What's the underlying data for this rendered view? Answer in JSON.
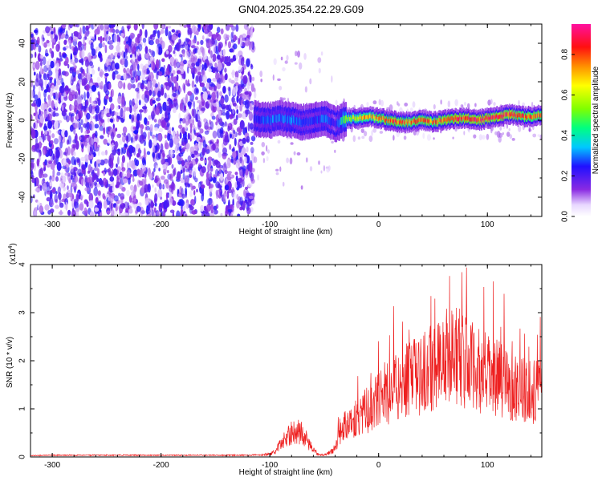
{
  "title": "GN04.2025.354.22.29.G09",
  "chart_data": [
    {
      "type": "heatmap",
      "xlabel": "Height of straight line (km)",
      "ylabel": "Frequency (Hz)",
      "xlim": [
        -320,
        150
      ],
      "ylim": [
        -50,
        50
      ],
      "x_ticks": [
        -300,
        -200,
        -100,
        0,
        100
      ],
      "y_ticks": [
        -40,
        -20,
        0,
        20,
        40
      ],
      "colorbar": {
        "label": "Normalized spectral amplitude",
        "range": [
          0.0,
          0.95
        ],
        "ticks": [
          0.0,
          0.2,
          0.4,
          0.6,
          0.8
        ],
        "tick_labels": [
          "0.0",
          "0.2",
          "0.4",
          "0.6",
          "0.8"
        ]
      },
      "noise_region_x": [
        -320,
        -115
      ],
      "signal_ridge": {
        "x": [
          -115,
          -100,
          -90,
          -80,
          -70,
          -60,
          -50,
          -40,
          -30,
          -20,
          -10,
          0,
          10,
          20,
          30,
          40,
          50,
          60,
          70,
          80,
          90,
          100,
          110,
          120,
          130,
          140,
          150
        ],
        "frequency": [
          1,
          0,
          1,
          0,
          -1,
          0,
          1,
          -2,
          1,
          1,
          2,
          1,
          0,
          -1,
          -1,
          0,
          -1,
          0,
          1,
          1,
          0,
          1,
          2,
          3,
          2,
          2,
          3
        ],
        "amplitude": [
          0.25,
          0.3,
          0.3,
          0.3,
          0.25,
          0.25,
          0.3,
          0.2,
          0.55,
          0.65,
          0.7,
          0.75,
          0.8,
          0.8,
          0.75,
          0.8,
          0.75,
          0.8,
          0.85,
          0.85,
          0.85,
          0.85,
          0.85,
          0.85,
          0.8,
          0.8,
          0.8
        ]
      }
    },
    {
      "type": "line",
      "xlabel": "Height of straight line (km)",
      "ylabel": "SNR (10 * v/v)",
      "y_multiplier": "(x10",
      "y_multiplier_exp": "4",
      "xlim": [
        -320,
        150
      ],
      "ylim": [
        0,
        4
      ],
      "x_ticks": [
        -300,
        -200,
        -100,
        0,
        100
      ],
      "y_ticks": [
        0,
        1,
        2,
        3,
        4
      ],
      "series": [
        {
          "color": "#ee2020",
          "envelope_x": [
            -320,
            -300,
            -200,
            -120,
            -100,
            -95,
            -90,
            -85,
            -80,
            -75,
            -70,
            -65,
            -60,
            -55,
            -50,
            -45,
            -40,
            -35,
            -30,
            -25,
            -20,
            -15,
            -10,
            -5,
            0,
            10,
            20,
            30,
            40,
            50,
            60,
            70,
            80,
            90,
            100,
            110,
            120,
            130,
            140,
            150
          ],
          "envelope_y": [
            0.03,
            0.04,
            0.04,
            0.04,
            0.06,
            0.12,
            0.3,
            0.45,
            0.55,
            0.6,
            0.55,
            0.35,
            0.15,
            0.06,
            0.05,
            0.1,
            0.2,
            0.6,
            0.75,
            0.85,
            0.9,
            1.0,
            1.1,
            1.2,
            1.3,
            1.5,
            1.7,
            1.8,
            1.9,
            2.1,
            2.3,
            2.4,
            2.2,
            2.0,
            1.9,
            1.8,
            1.7,
            1.6,
            1.5,
            1.5
          ]
        }
      ]
    }
  ]
}
